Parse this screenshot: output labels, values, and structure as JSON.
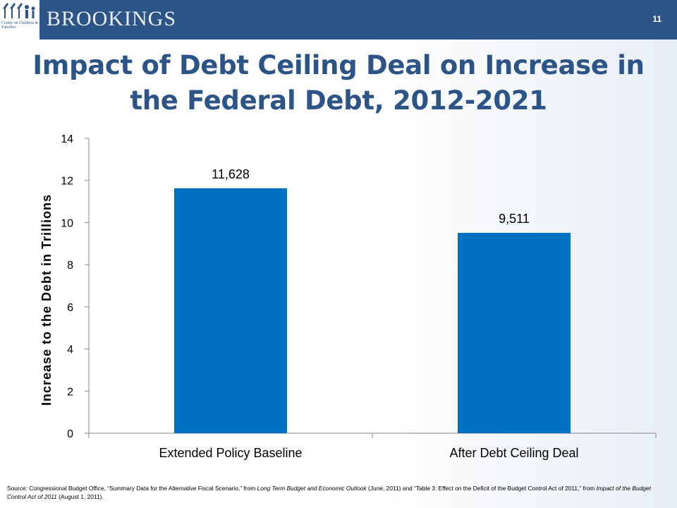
{
  "header": {
    "brand": "BROOKINGS",
    "logo_caption": "Center on Children & Families",
    "page_number": "11",
    "brand_color": "#2d5486"
  },
  "title": {
    "line1": "Impact of Debt Ceiling Deal on Increase in",
    "line2": "the Federal Debt, 2012-2021"
  },
  "chart_data": {
    "type": "bar",
    "categories": [
      "Extended Policy Baseline",
      "After Debt Ceiling Deal"
    ],
    "values": [
      11.628,
      9.511
    ],
    "data_labels": [
      "11,628",
      "9,511"
    ],
    "xlabel": "",
    "ylabel": "Increase to the Debt in Trillions",
    "ylim": [
      0,
      14
    ],
    "yticks": [
      "0",
      "2",
      "4",
      "6",
      "8",
      "10",
      "12",
      "14"
    ],
    "grid": false,
    "bar_color": "#0070c0"
  },
  "source": {
    "part1": "Source: Congressional Budget Office, “Summary Data for the Alternative Fiscal Scenario,” from ",
    "part2_italic": "Long Term Budget and Economic Outlook",
    "part3": " (June, 2011) and “Table 3: Effect on the Deficit of the Budget Control Act of 2011,” from ",
    "part4_italic": "Impact of the Budget Control Act of 2011",
    "part5": " (August 1, 2011)."
  }
}
